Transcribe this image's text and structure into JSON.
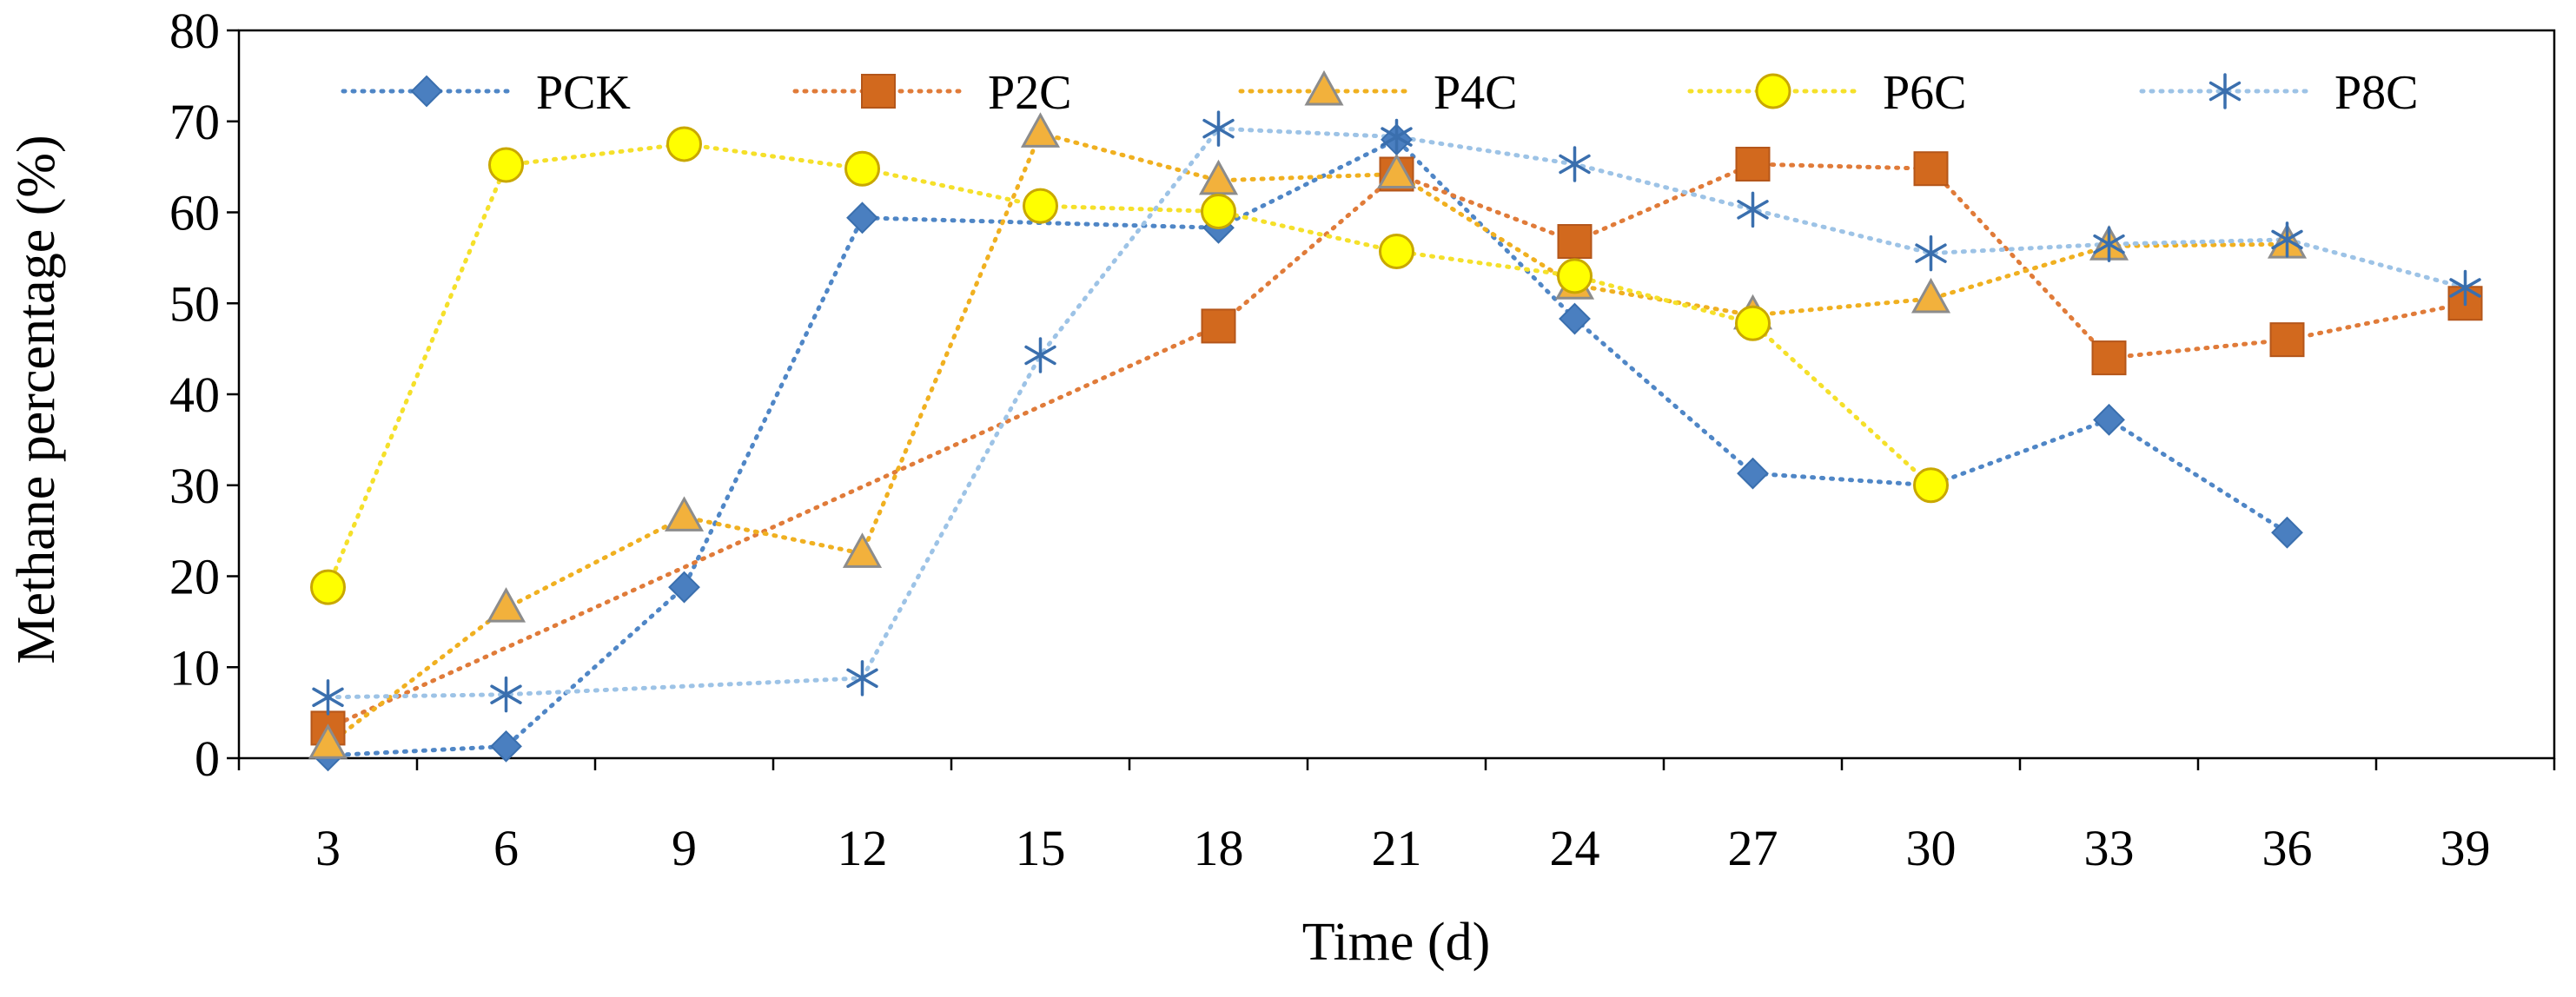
{
  "chart_data": {
    "type": "line",
    "title": "",
    "xlabel": "Time (d)",
    "ylabel": "Methane percentage  (%)",
    "x": [
      3,
      6,
      9,
      12,
      15,
      18,
      21,
      24,
      27,
      30,
      33,
      36,
      39
    ],
    "xlim": [
      1.5,
      40.5
    ],
    "ylim": [
      0,
      80
    ],
    "yticks": [
      0,
      10,
      20,
      30,
      40,
      50,
      60,
      70,
      80
    ],
    "grid": false,
    "legend_position": "top",
    "series": [
      {
        "name": "PCK",
        "marker": "diamond",
        "color": "#4a7fc0",
        "stroke": "#3a6fae",
        "line_color": "#4f86c6",
        "x": [
          3,
          6,
          9,
          12,
          18,
          21,
          24,
          27,
          30,
          33,
          36
        ],
        "values": [
          0.3,
          1.3,
          18.8,
          59.4,
          58.3,
          68.0,
          48.3,
          31.3,
          30.0,
          37.2,
          24.8
        ]
      },
      {
        "name": "P2C",
        "marker": "square",
        "color": "#d2691e",
        "stroke": "#b4561a",
        "line_color": "#e07b39",
        "x": [
          3,
          18,
          21,
          24,
          27,
          30,
          33,
          36,
          39
        ],
        "values": [
          3.3,
          47.5,
          64.2,
          56.8,
          65.3,
          64.8,
          44.0,
          46.0,
          50.0
        ]
      },
      {
        "name": "P4C",
        "marker": "triangle",
        "color": "#f2b13c",
        "stroke": "#8c8c8c",
        "line_color": "#f0b020",
        "x": [
          3,
          6,
          9,
          12,
          15,
          18,
          21,
          24,
          27,
          30,
          33,
          36
        ],
        "values": [
          1.5,
          16.5,
          26.5,
          22.5,
          68.7,
          63.5,
          64.2,
          52.0,
          48.7,
          50.5,
          56.3,
          56.5
        ]
      },
      {
        "name": "P6C",
        "marker": "circle",
        "color": "#ffff00",
        "stroke": "#c9a800",
        "line_color": "#f5e02a",
        "x": [
          3,
          6,
          9,
          12,
          15,
          18,
          21,
          24,
          27,
          30
        ],
        "values": [
          18.8,
          65.2,
          67.5,
          64.8,
          60.7,
          60.1,
          55.7,
          53.0,
          47.8,
          30.0
        ]
      },
      {
        "name": "P8C",
        "marker": "asterisk",
        "color": "#3a6fae",
        "stroke": "#3a6fae",
        "line_color": "#9dc3e6",
        "x": [
          3,
          6,
          12,
          15,
          18,
          21,
          24,
          27,
          30,
          33,
          36,
          39
        ],
        "values": [
          6.7,
          7.0,
          8.8,
          44.3,
          69.2,
          68.3,
          65.3,
          60.3,
          55.5,
          56.5,
          57.0,
          51.7
        ]
      }
    ]
  }
}
